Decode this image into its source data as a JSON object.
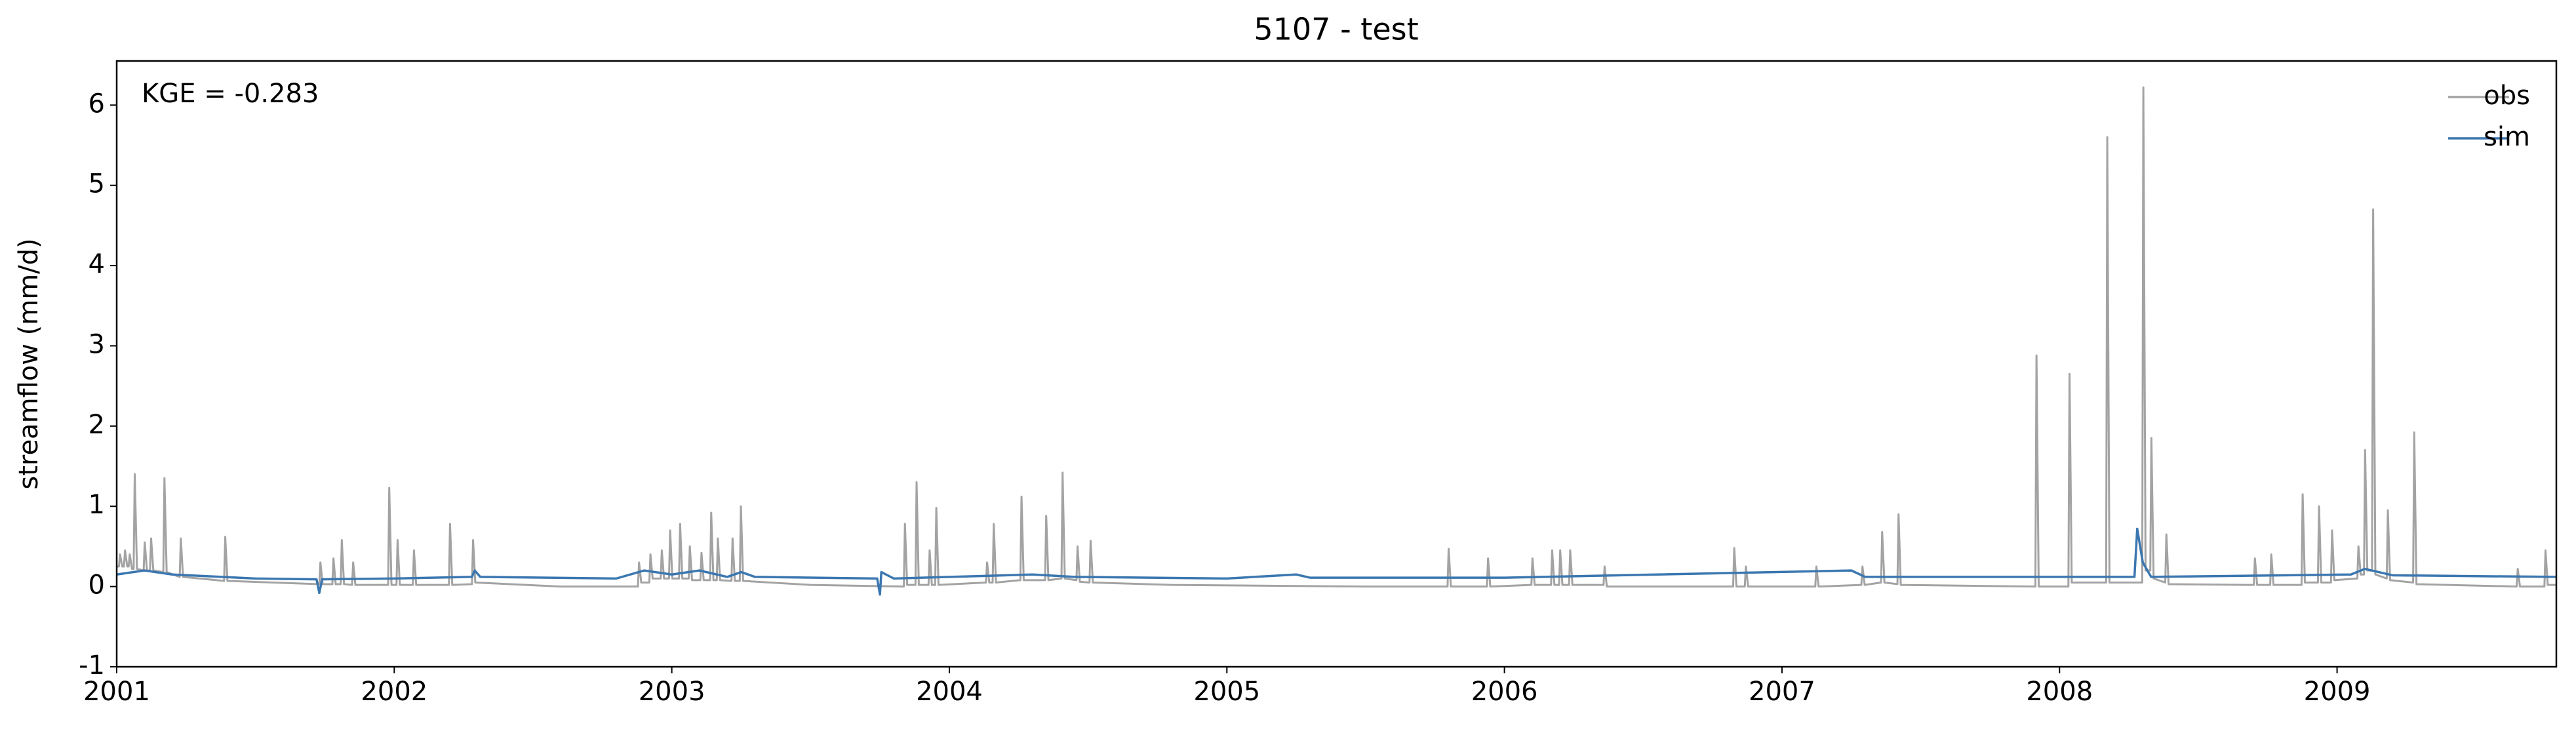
{
  "chart_data": {
    "type": "line",
    "title": "5107 - test",
    "ylabel": "streamflow (mm/d)",
    "annotation": "KGE = -0.283",
    "xlim": [
      2001,
      2009.79
    ],
    "xticks": [
      2001,
      2002,
      2003,
      2004,
      2005,
      2006,
      2007,
      2008,
      2009
    ],
    "ylim": [
      -1,
      6.55
    ],
    "yticks": [
      -1,
      0,
      1,
      2,
      3,
      4,
      5,
      6
    ],
    "grid": false,
    "legend": "upper right",
    "series": [
      {
        "name": "obs",
        "color": "#a3a3a3",
        "x": [
          2001.0,
          2001.008,
          2001.012,
          2001.02,
          2001.026,
          2001.03,
          2001.038,
          2001.043,
          2001.047,
          2001.055,
          2001.061,
          2001.065,
          2001.073,
          2001.097,
          2001.101,
          2001.109,
          2001.12,
          2001.124,
          2001.132,
          2001.168,
          2001.172,
          2001.18,
          2001.227,
          2001.231,
          2001.239,
          2001.387,
          2001.391,
          2001.399,
          2001.73,
          2001.734,
          2001.742,
          2001.777,
          2001.781,
          2001.789,
          2001.807,
          2001.811,
          2001.819,
          2001.848,
          2001.852,
          2001.86,
          2001.978,
          2001.982,
          2001.99,
          2002.008,
          2002.012,
          2002.02,
          2002.067,
          2002.071,
          2002.079,
          2002.197,
          2002.201,
          2002.209,
          2002.28,
          2002.284,
          2002.292,
          2002.6,
          2002.878,
          2002.882,
          2002.89,
          2002.919,
          2002.923,
          2002.931,
          2002.96,
          2002.964,
          2002.972,
          2002.99,
          2002.994,
          2003.002,
          2003.026,
          2003.03,
          2003.038,
          2003.061,
          2003.065,
          2003.073,
          2003.103,
          2003.107,
          2003.115,
          2003.138,
          2003.142,
          2003.15,
          2003.162,
          2003.166,
          2003.174,
          2003.215,
          2003.219,
          2003.227,
          2003.245,
          2003.249,
          2003.257,
          2003.5,
          2003.836,
          2003.84,
          2003.848,
          2003.878,
          2003.882,
          2003.89,
          2003.925,
          2003.929,
          2003.937,
          2003.949,
          2003.953,
          2003.961,
          2004.132,
          2004.136,
          2004.144,
          2004.156,
          2004.16,
          2004.168,
          2004.256,
          2004.26,
          2004.268,
          2004.345,
          2004.349,
          2004.357,
          2004.404,
          2004.408,
          2004.416,
          2004.458,
          2004.462,
          2004.47,
          2004.505,
          2004.509,
          2004.517,
          2004.8,
          2005.5,
          2005.795,
          2005.799,
          2005.807,
          2005.937,
          2005.941,
          2005.949,
          2006.097,
          2006.101,
          2006.109,
          2006.168,
          2006.172,
          2006.18,
          2006.197,
          2006.201,
          2006.209,
          2006.233,
          2006.237,
          2006.245,
          2006.357,
          2006.361,
          2006.369,
          2006.824,
          2006.828,
          2006.836,
          2006.866,
          2006.87,
          2006.878,
          2007.12,
          2007.124,
          2007.132,
          2007.286,
          2007.29,
          2007.298,
          2007.357,
          2007.361,
          2007.369,
          2007.416,
          2007.42,
          2007.428,
          2007.913,
          2007.917,
          2007.925,
          2008.032,
          2008.036,
          2008.044,
          2008.168,
          2008.172,
          2008.18,
          2008.298,
          2008.302,
          2008.31,
          2008.327,
          2008.331,
          2008.339,
          2008.381,
          2008.385,
          2008.393,
          2008.7,
          2008.704,
          2008.712,
          2008.759,
          2008.763,
          2008.771,
          2008.872,
          2008.876,
          2008.884,
          2008.931,
          2008.935,
          2008.943,
          2008.978,
          2008.982,
          2008.99,
          2009.073,
          2009.077,
          2009.085,
          2009.097,
          2009.101,
          2009.109,
          2009.126,
          2009.13,
          2009.138,
          2009.179,
          2009.183,
          2009.191,
          2009.274,
          2009.278,
          2009.286,
          2009.647,
          2009.651,
          2009.659,
          2009.747,
          2009.751,
          2009.759,
          2009.79
        ],
        "values": [
          0.25,
          0.25,
          0.4,
          0.25,
          0.25,
          0.45,
          0.25,
          0.25,
          0.4,
          0.22,
          0.22,
          1.4,
          0.22,
          0.2,
          0.55,
          0.2,
          0.2,
          0.6,
          0.2,
          0.18,
          1.35,
          0.18,
          0.12,
          0.6,
          0.12,
          0.07,
          0.62,
          0.07,
          0.03,
          0.3,
          0.03,
          0.03,
          0.35,
          0.03,
          0.03,
          0.58,
          0.03,
          0.02,
          0.3,
          0.02,
          0.02,
          1.23,
          0.02,
          0.02,
          0.58,
          0.02,
          0.02,
          0.45,
          0.02,
          0.02,
          0.78,
          0.02,
          0.03,
          0.58,
          0.05,
          0.0,
          0.0,
          0.3,
          0.05,
          0.05,
          0.4,
          0.1,
          0.1,
          0.45,
          0.1,
          0.1,
          0.7,
          0.1,
          0.1,
          0.78,
          0.1,
          0.1,
          0.5,
          0.08,
          0.08,
          0.42,
          0.08,
          0.08,
          0.92,
          0.08,
          0.08,
          0.6,
          0.08,
          0.07,
          0.6,
          0.07,
          0.07,
          1.0,
          0.07,
          0.02,
          0.0,
          0.78,
          0.02,
          0.02,
          1.3,
          0.02,
          0.02,
          0.45,
          0.02,
          0.02,
          0.98,
          0.02,
          0.05,
          0.3,
          0.05,
          0.05,
          0.78,
          0.05,
          0.08,
          1.12,
          0.08,
          0.08,
          0.88,
          0.08,
          0.1,
          1.42,
          0.1,
          0.08,
          0.5,
          0.06,
          0.05,
          0.57,
          0.05,
          0.02,
          0.0,
          0.0,
          0.47,
          0.0,
          0.0,
          0.35,
          0.0,
          0.02,
          0.35,
          0.02,
          0.02,
          0.45,
          0.02,
          0.02,
          0.45,
          0.02,
          0.02,
          0.45,
          0.02,
          0.02,
          0.25,
          0.0,
          0.0,
          0.48,
          0.0,
          0.0,
          0.25,
          0.0,
          0.0,
          0.25,
          0.0,
          0.02,
          0.25,
          0.02,
          0.05,
          0.68,
          0.05,
          0.03,
          0.9,
          0.02,
          0.0,
          2.88,
          0.0,
          0.0,
          2.65,
          0.05,
          0.05,
          5.6,
          0.05,
          0.05,
          6.22,
          0.2,
          0.2,
          1.85,
          0.1,
          0.05,
          0.65,
          0.03,
          0.02,
          0.35,
          0.02,
          0.02,
          0.4,
          0.02,
          0.02,
          1.15,
          0.05,
          0.05,
          1.0,
          0.05,
          0.05,
          0.7,
          0.08,
          0.1,
          0.5,
          0.15,
          0.15,
          1.7,
          0.2,
          0.2,
          4.7,
          0.15,
          0.1,
          0.95,
          0.08,
          0.05,
          1.92,
          0.03,
          0.0,
          0.22,
          0.0,
          0.0,
          0.45,
          0.02,
          0.02
        ]
      },
      {
        "name": "sim",
        "color": "#3b77b0",
        "x": [
          2001.0,
          2001.1,
          2001.2,
          2001.5,
          2001.72,
          2001.73,
          2001.74,
          2002.0,
          2002.28,
          2002.29,
          2002.31,
          2002.8,
          2002.9,
          2003.0,
          2003.1,
          2003.2,
          2003.25,
          2003.3,
          2003.74,
          2003.75,
          2003.755,
          2003.8,
          2004.3,
          2004.45,
          2005.0,
          2005.25,
          2005.3,
          2006.0,
          2007.25,
          2007.3,
          2008.0,
          2008.27,
          2008.28,
          2008.3,
          2008.33,
          2009.05,
          2009.1,
          2009.2,
          2009.79
        ],
        "values": [
          0.15,
          0.2,
          0.15,
          0.1,
          0.09,
          -0.08,
          0.09,
          0.1,
          0.12,
          0.2,
          0.12,
          0.1,
          0.2,
          0.15,
          0.2,
          0.12,
          0.18,
          0.12,
          0.1,
          -0.1,
          0.18,
          0.1,
          0.15,
          0.12,
          0.1,
          0.15,
          0.11,
          0.11,
          0.2,
          0.12,
          0.12,
          0.12,
          0.72,
          0.3,
          0.12,
          0.15,
          0.22,
          0.14,
          0.12
        ]
      }
    ]
  }
}
